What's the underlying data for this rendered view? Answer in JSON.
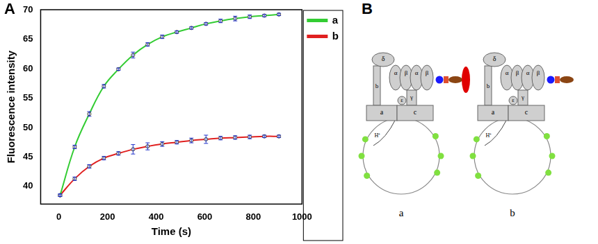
{
  "chart_data": {
    "type": "line",
    "panel": "A",
    "x_label": "Time (s)",
    "y_label": "Fluorescence intensity",
    "x": [
      5,
      65,
      125,
      185,
      245,
      305,
      365,
      425,
      485,
      545,
      605,
      665,
      725,
      785,
      845,
      905
    ],
    "series": [
      {
        "name": "a",
        "color": "#33cc33",
        "values": [
          38.5,
          46.7,
          52.3,
          57.0,
          59.9,
          62.3,
          64.1,
          65.4,
          66.2,
          66.9,
          67.6,
          68.1,
          68.5,
          68.8,
          69.0,
          69.2
        ],
        "error": [
          0.2,
          0.3,
          0.4,
          0.3,
          0.2,
          0.5,
          0.3,
          0.3,
          0.2,
          0.2,
          0.2,
          0.3,
          0.4,
          0.3,
          0.2,
          0.2
        ]
      },
      {
        "name": "b",
        "color": "#e02020",
        "values": [
          38.5,
          41.3,
          43.4,
          44.8,
          45.6,
          46.3,
          46.8,
          47.2,
          47.5,
          47.8,
          48.0,
          48.2,
          48.3,
          48.4,
          48.5,
          48.5
        ],
        "error": [
          0.2,
          0.3,
          0.3,
          0.3,
          0.3,
          0.8,
          0.6,
          0.4,
          0.3,
          0.4,
          0.7,
          0.3,
          0.3,
          0.3,
          0.2,
          0.2
        ]
      }
    ],
    "xlim": [
      -75,
      1000
    ],
    "xticks": [
      0,
      200,
      400,
      600,
      800,
      1000
    ],
    "ylim": [
      37,
      70
    ],
    "yticks": [
      40,
      45,
      50,
      55,
      60,
      65,
      70
    ],
    "legend": "right",
    "grid": false,
    "marker": "circle"
  },
  "diagram": {
    "panel": "B",
    "subunit_labels": [
      "δ",
      "α",
      "β",
      "α",
      "β",
      "γ",
      "ε",
      "b",
      "a",
      "c",
      "H⁺"
    ],
    "constructs": [
      {
        "label": "a",
        "tag_colors": [
          "#1a1aff",
          "#e05030",
          "#8b4513",
          "#e00000"
        ]
      },
      {
        "label": "b",
        "tag_colors": [
          "#1a1aff",
          "#e05030",
          "#8b4513"
        ]
      }
    ]
  }
}
